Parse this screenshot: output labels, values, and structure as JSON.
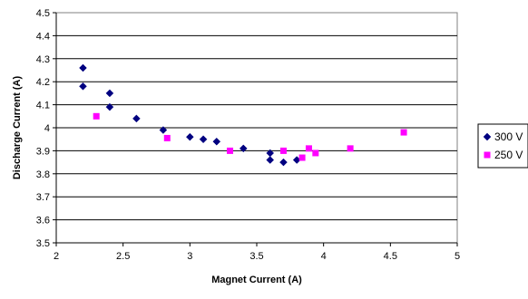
{
  "chart_data": {
    "type": "scatter",
    "title": "",
    "xlabel": "Magnet Current (A)",
    "ylabel": "Discharge Current (A)",
    "xlim": [
      2,
      5
    ],
    "ylim": [
      3.5,
      4.5
    ],
    "x_ticks": [
      "2",
      "2.5",
      "3",
      "3.5",
      "4",
      "4.5",
      "5"
    ],
    "y_ticks": [
      "3.5",
      "3.6",
      "3.7",
      "3.8",
      "3.9",
      "4",
      "4.1",
      "4.2",
      "4.3",
      "4.4",
      "4.5"
    ],
    "grid": "horizontal",
    "legend_position": "right",
    "series": [
      {
        "name": "300 V",
        "color": "#000080",
        "marker": "diamond",
        "points": [
          [
            2.2,
            4.26
          ],
          [
            2.2,
            4.18
          ],
          [
            2.4,
            4.15
          ],
          [
            2.4,
            4.09
          ],
          [
            2.6,
            4.04
          ],
          [
            2.8,
            3.99
          ],
          [
            3.0,
            3.96
          ],
          [
            3.1,
            3.95
          ],
          [
            3.2,
            3.94
          ],
          [
            3.4,
            3.91
          ],
          [
            3.6,
            3.89
          ],
          [
            3.6,
            3.86
          ],
          [
            3.7,
            3.85
          ],
          [
            3.8,
            3.86
          ]
        ]
      },
      {
        "name": "250 V",
        "color": "#FF00FF",
        "marker": "square",
        "points": [
          [
            2.3,
            4.05
          ],
          [
            2.83,
            3.955
          ],
          [
            3.3,
            3.9
          ],
          [
            3.7,
            3.9
          ],
          [
            3.84,
            3.87
          ],
          [
            3.89,
            3.91
          ],
          [
            3.94,
            3.89
          ],
          [
            4.2,
            3.91
          ],
          [
            4.6,
            3.98
          ]
        ]
      }
    ]
  }
}
